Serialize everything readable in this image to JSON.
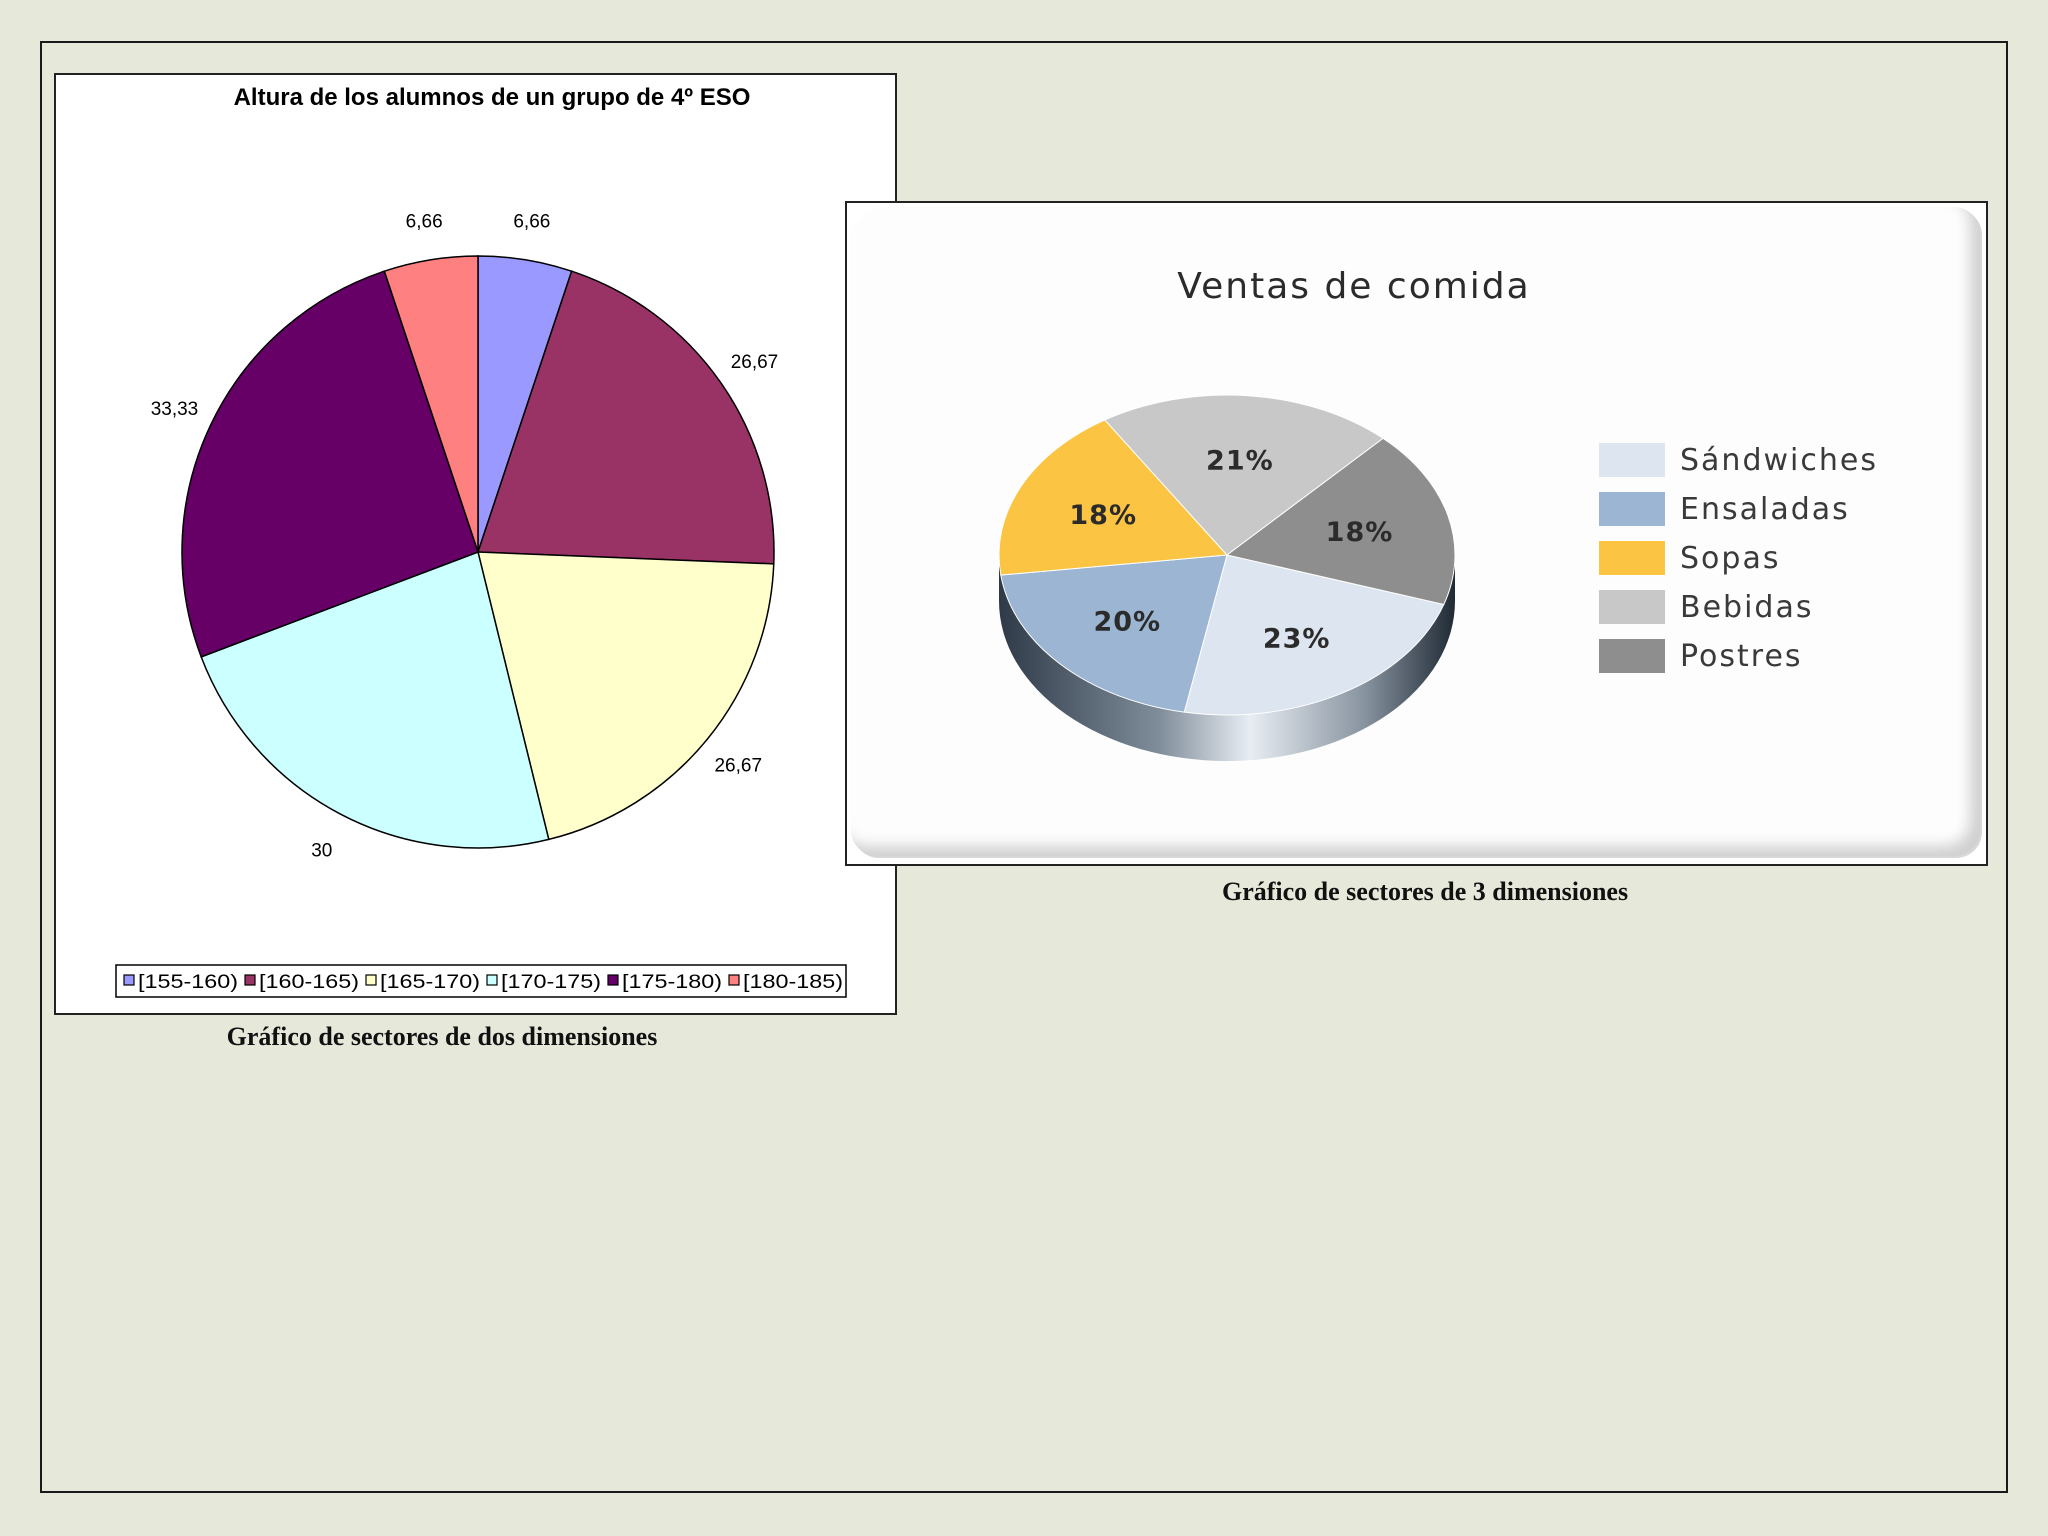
{
  "frame": {},
  "chart_data": [
    {
      "type": "pie",
      "title": "Altura de los alumnos de un grupo de 4º ESO",
      "categories": [
        "[155-160)",
        "[160-165)",
        "[165-170)",
        "[170-175)",
        "[175-180)",
        "[180-185)"
      ],
      "values": [
        6.66,
        26.67,
        26.67,
        30,
        33.33,
        6.66
      ],
      "labels": [
        "6,66",
        "26,67",
        "26,67",
        "30",
        "33,33",
        "6,66"
      ],
      "colors": [
        "#9999ff",
        "#993366",
        "#ffffcc",
        "#ccffff",
        "#660066",
        "#ff8080"
      ],
      "legend_position": "bottom"
    },
    {
      "type": "pie",
      "style": "3d",
      "title": "Ventas de comida",
      "categories": [
        "Sándwiches",
        "Ensaladas",
        "Sopas",
        "Bebidas",
        "Postres"
      ],
      "values": [
        23,
        20,
        18,
        21,
        18
      ],
      "labels": [
        "23%",
        "20%",
        "18%",
        "21%",
        "18%"
      ],
      "colors": [
        "#dde5f1",
        "#9bb5d2",
        "#fbc443",
        "#c8c8c8",
        "#8e8e8e"
      ],
      "legend_position": "right"
    }
  ],
  "captions": {
    "chart1": "Gráfico de sectores de dos dimensiones",
    "chart2": "Gráfico de sectores de 3 dimensiones"
  }
}
